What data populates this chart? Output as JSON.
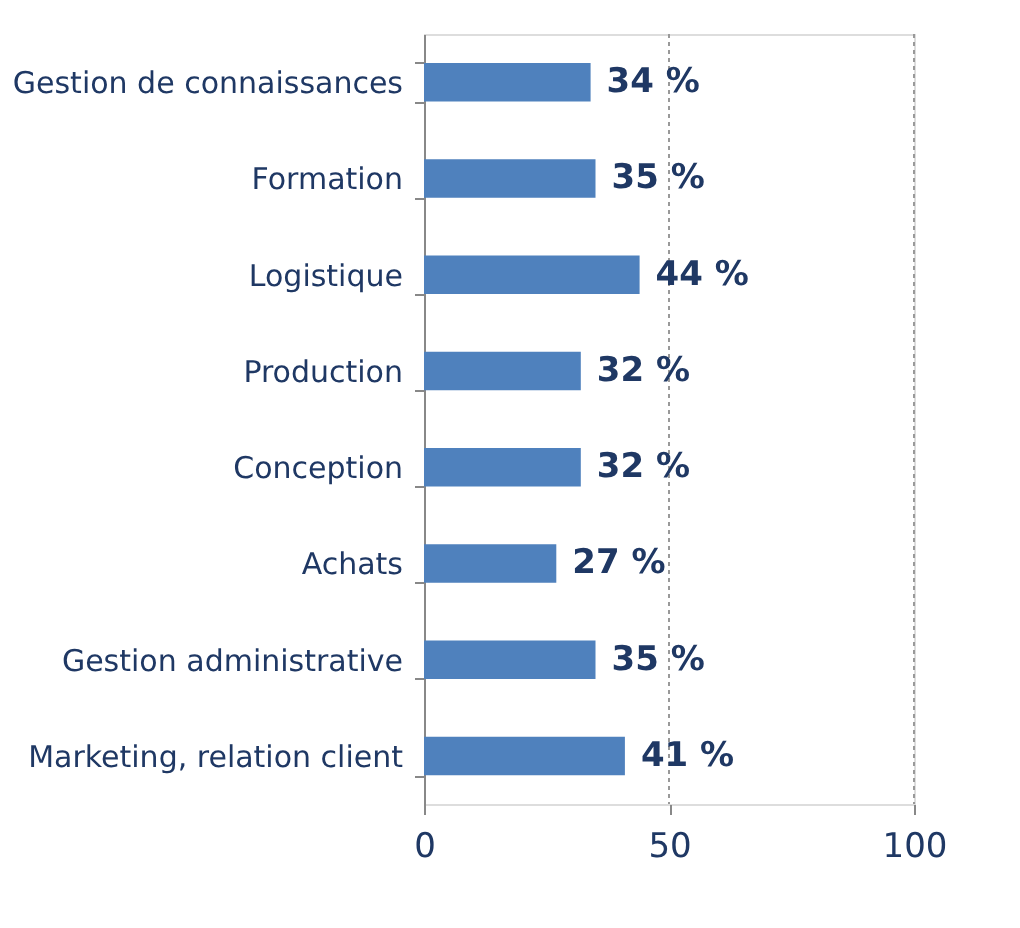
{
  "chart_data": {
    "type": "bar",
    "orientation": "horizontal",
    "categories": [
      "Gestion de connaissances",
      "Formation",
      "Logistique",
      "Production",
      "Conception",
      "Achats",
      "Gestion administrative",
      "Marketing, relation client"
    ],
    "values": [
      34,
      35,
      44,
      32,
      32,
      27,
      35,
      41
    ],
    "value_labels": [
      "34 %",
      "35 %",
      "44 %",
      "32 %",
      "32 %",
      "27 %",
      "35 %",
      "41 %"
    ],
    "color": "#4f81bd",
    "xlim": [
      0,
      100
    ],
    "xticks": [
      0,
      50,
      100
    ],
    "grid": "x"
  }
}
